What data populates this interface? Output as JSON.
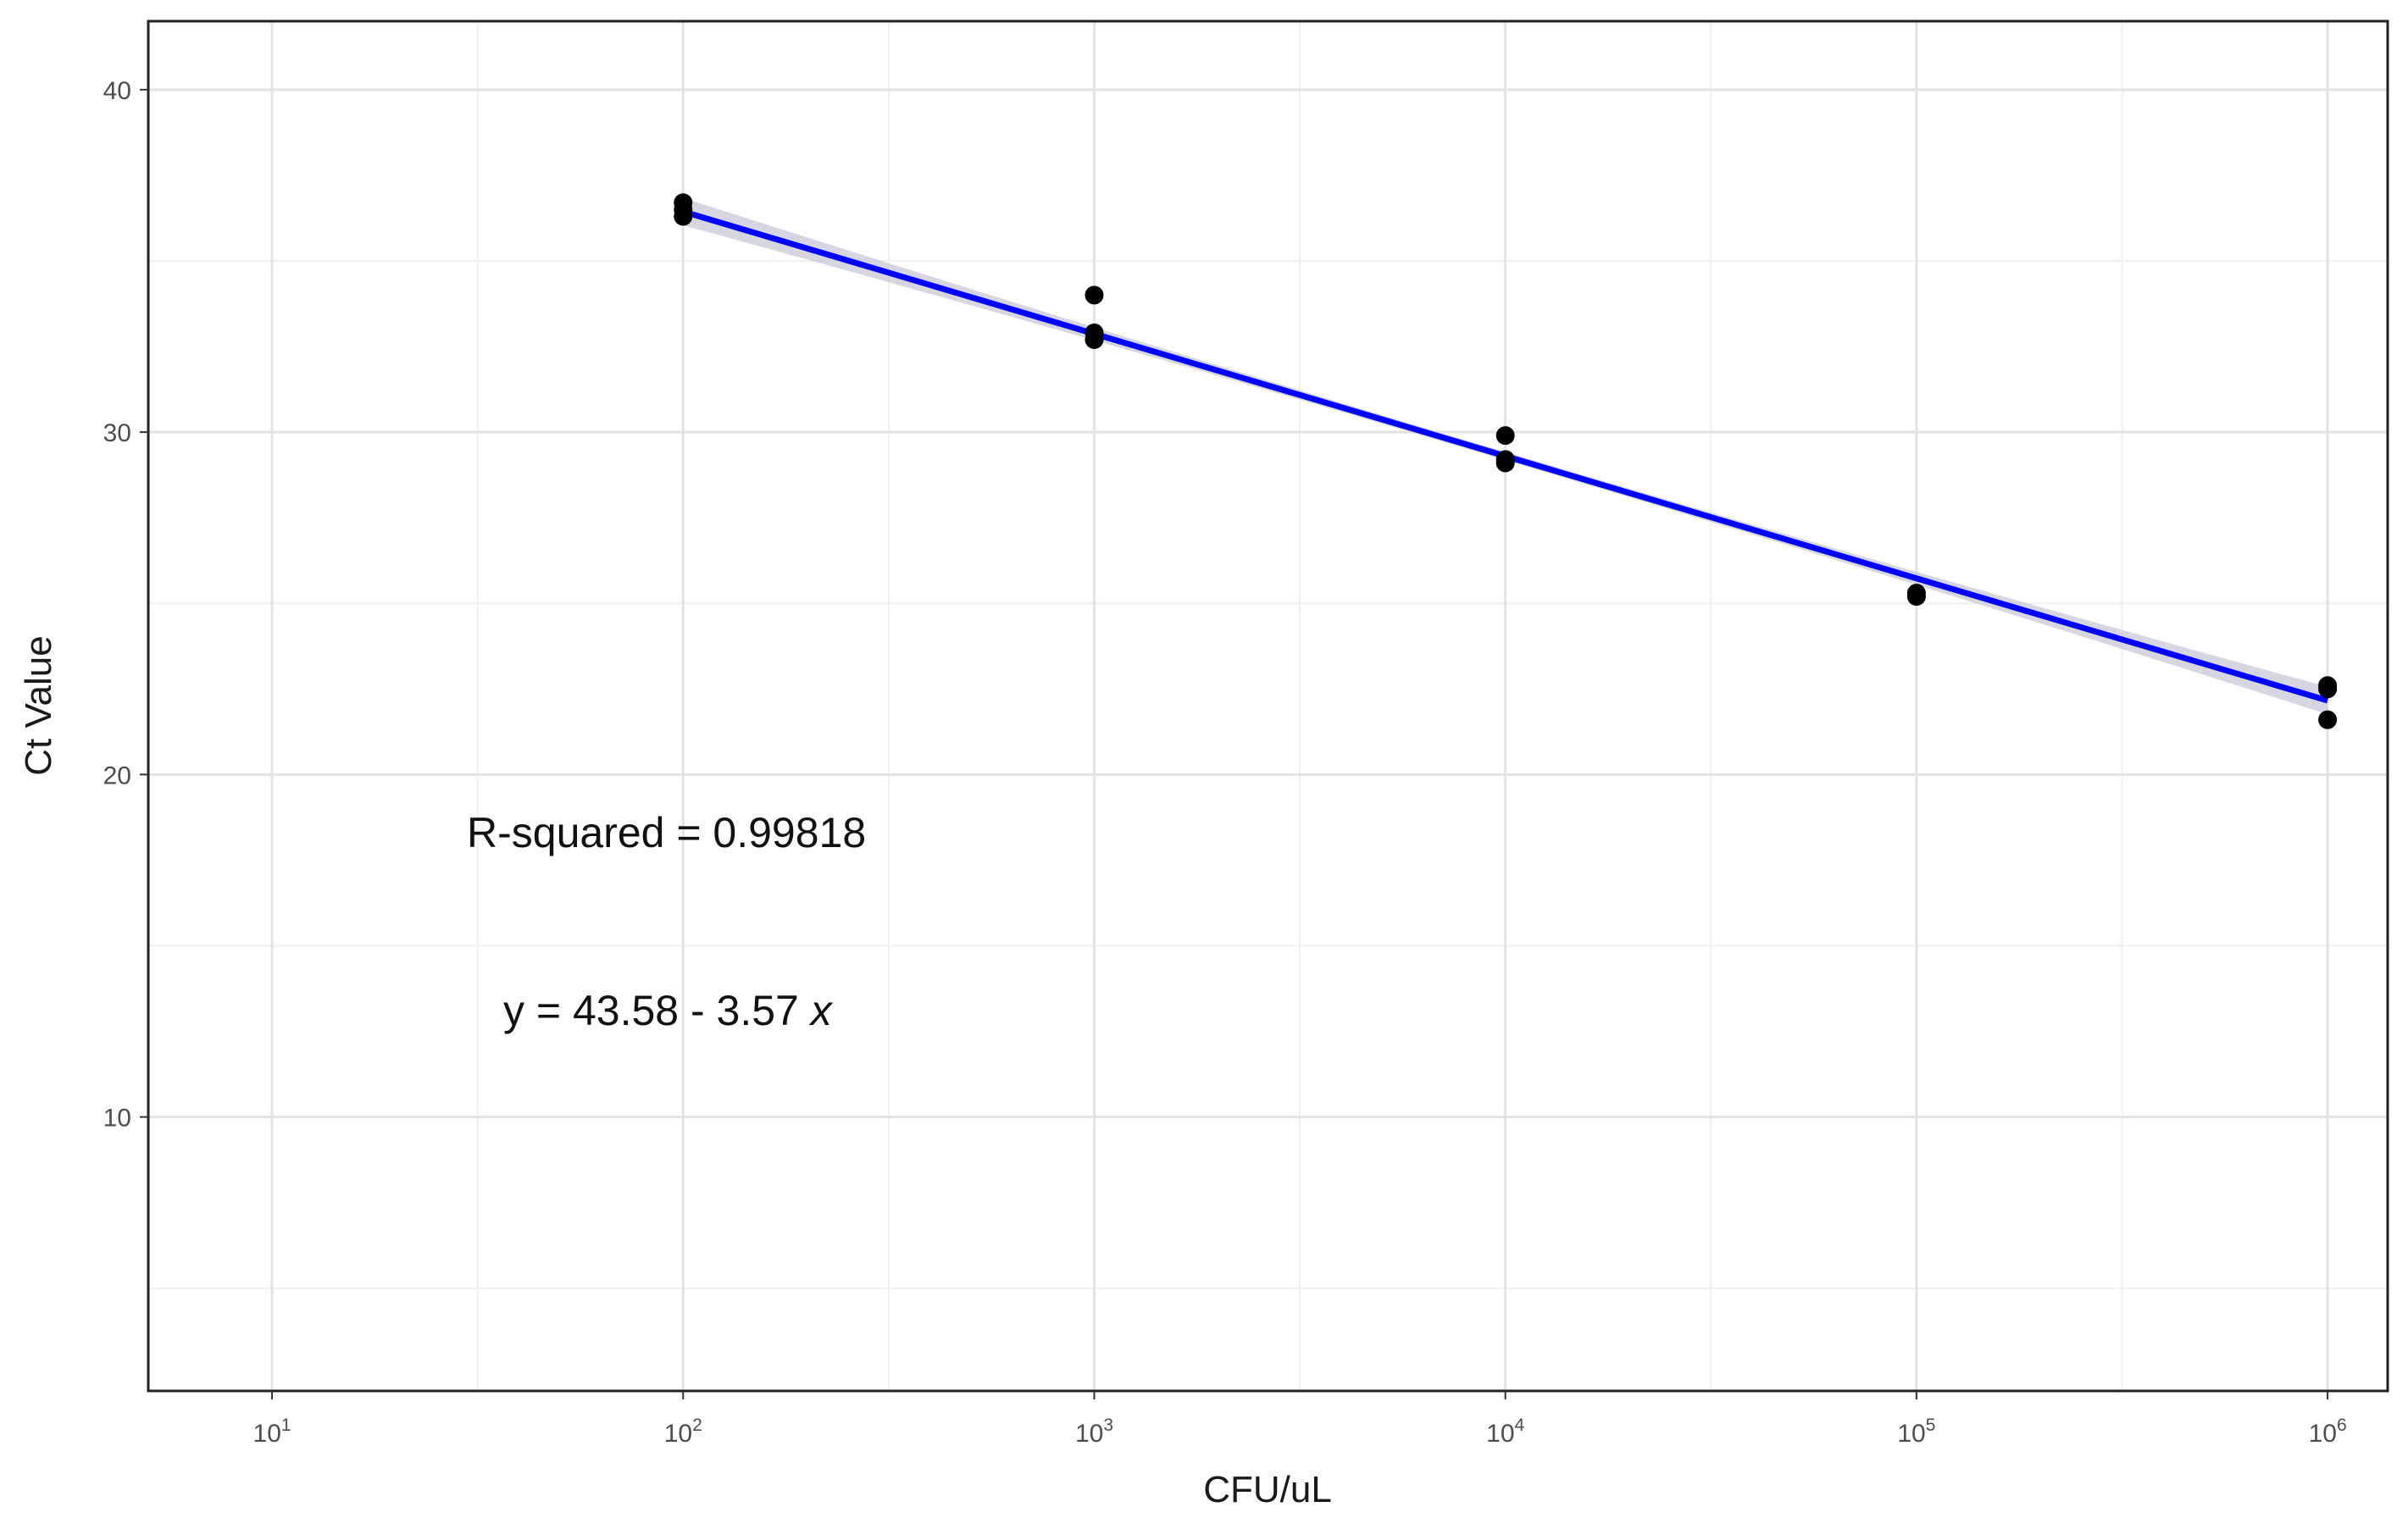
{
  "chart_data": {
    "type": "scatter",
    "title": "",
    "xlabel": "CFU/uL",
    "ylabel": "Ct Value",
    "x_scale": "log10",
    "xlim": [
      5,
      1400000
    ],
    "ylim": [
      2,
      42
    ],
    "x_ticks": [
      {
        "base": "10",
        "exp": "1",
        "value": 10
      },
      {
        "base": "10",
        "exp": "2",
        "value": 100
      },
      {
        "base": "10",
        "exp": "3",
        "value": 1000
      },
      {
        "base": "10",
        "exp": "4",
        "value": 10000
      },
      {
        "base": "10",
        "exp": "5",
        "value": 100000
      },
      {
        "base": "10",
        "exp": "6",
        "value": 1000000
      }
    ],
    "y_ticks": [
      "10",
      "20",
      "30",
      "40"
    ],
    "grid": true,
    "points": [
      {
        "x": 100,
        "y": 36.7
      },
      {
        "x": 100,
        "y": 36.5
      },
      {
        "x": 100,
        "y": 36.3
      },
      {
        "x": 1000,
        "y": 34.0
      },
      {
        "x": 1000,
        "y": 32.9
      },
      {
        "x": 1000,
        "y": 32.7
      },
      {
        "x": 10000,
        "y": 29.9
      },
      {
        "x": 10000,
        "y": 29.2
      },
      {
        "x": 10000,
        "y": 29.1
      },
      {
        "x": 100000,
        "y": 25.3
      },
      {
        "x": 100000,
        "y": 25.2
      },
      {
        "x": 1000000,
        "y": 22.6
      },
      {
        "x": 1000000,
        "y": 22.5
      },
      {
        "x": 1000000,
        "y": 21.6
      }
    ],
    "fit": {
      "intercept": 43.58,
      "slope": -3.57,
      "x_range": [
        100,
        1000000
      ],
      "color": "#0000ff",
      "band_color": "#c8c8d8"
    },
    "point_color": "#000000",
    "annotations": {
      "r_squared": "R-squared = 0.99818",
      "equation_prefix": "y = 43.58 - 3.57 ",
      "equation_var": "x"
    }
  }
}
